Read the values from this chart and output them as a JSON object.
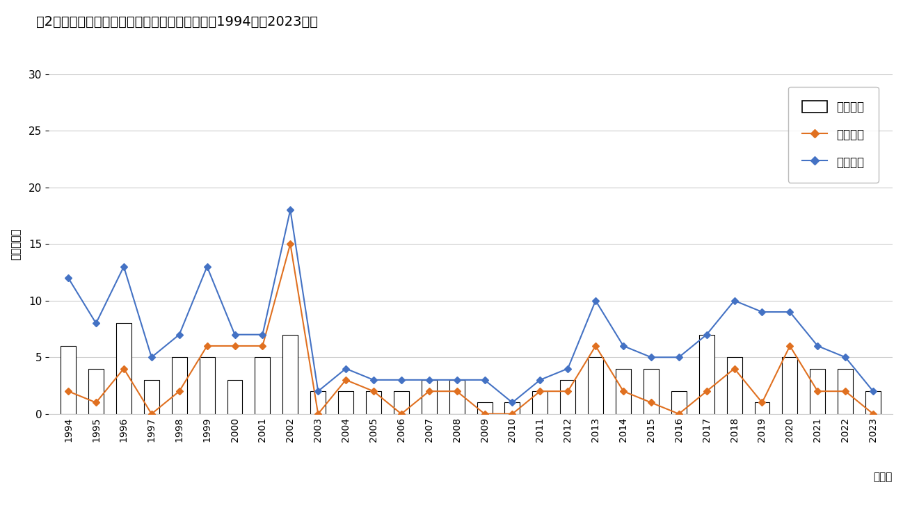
{
  "title": "図2　硫化水素中毒の労働災害発生状況の推移（1994年～2023年）",
  "years": [
    1994,
    1995,
    1996,
    1997,
    1998,
    1999,
    2000,
    2001,
    2002,
    2003,
    2004,
    2005,
    2006,
    2007,
    2008,
    2009,
    2010,
    2011,
    2012,
    2013,
    2014,
    2015,
    2016,
    2017,
    2018,
    2019,
    2020,
    2021,
    2022,
    2023
  ],
  "incidents": [
    6,
    4,
    8,
    3,
    5,
    5,
    3,
    5,
    7,
    2,
    2,
    2,
    2,
    3,
    3,
    1,
    1,
    2,
    3,
    5,
    4,
    4,
    2,
    7,
    5,
    1,
    5,
    4,
    4,
    2
  ],
  "deaths": [
    2,
    1,
    4,
    0,
    2,
    6,
    6,
    6,
    15,
    0,
    3,
    2,
    0,
    2,
    2,
    0,
    0,
    2,
    2,
    6,
    2,
    1,
    0,
    2,
    4,
    1,
    6,
    2,
    2,
    0
  ],
  "casualties": [
    12,
    8,
    13,
    5,
    7,
    13,
    7,
    7,
    18,
    2,
    4,
    3,
    3,
    3,
    3,
    3,
    1,
    3,
    4,
    10,
    6,
    5,
    5,
    7,
    10,
    9,
    9,
    6,
    5,
    2
  ],
  "ylabel": "「人・件」",
  "xlabel": "「年」",
  "legend_incidents": "発生件数",
  "legend_deaths": "死亡者数",
  "legend_casualties": "被災者数",
  "ylim": [
    0,
    30
  ],
  "yticks": [
    0,
    5,
    10,
    15,
    20,
    25,
    30
  ],
  "bar_color": "#ffffff",
  "bar_edgecolor": "#000000",
  "death_color": "#e07020",
  "casualty_color": "#4472c4",
  "background_color": "#ffffff"
}
